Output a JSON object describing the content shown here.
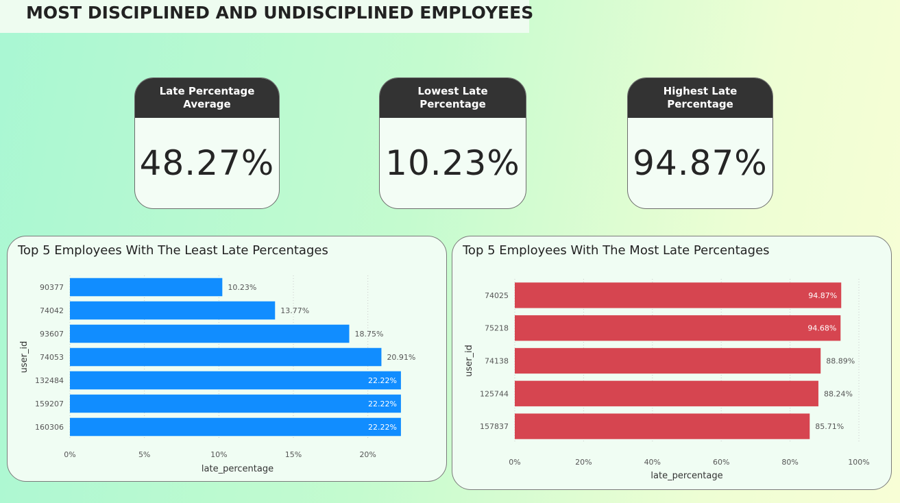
{
  "header": {
    "title": "MOST DISCIPLINED AND UNDISCIPLINED EMPLOYEES"
  },
  "kpis": [
    {
      "label": "Late Percentage Average",
      "value": "48.27%"
    },
    {
      "label": "Lowest Late Percentage",
      "value": "10.23%"
    },
    {
      "label": "Highest Late Percentage",
      "value": "94.87%"
    }
  ],
  "chart_data": [
    {
      "type": "bar",
      "orientation": "horizontal",
      "title": "Top 5 Employees With The Least Late Percentages",
      "xlabel": "late_percentage",
      "ylabel": "user_id",
      "categories": [
        "90377",
        "74042",
        "93607",
        "74053",
        "132484",
        "159207",
        "160306"
      ],
      "values": [
        10.23,
        13.77,
        18.75,
        20.91,
        22.22,
        22.22,
        22.22
      ],
      "data_labels": [
        "10.23%",
        "13.77%",
        "18.75%",
        "20.91%",
        "22.22%",
        "22.22%",
        "22.22%"
      ],
      "xlim": [
        0,
        22.5
      ],
      "xticks": [
        0,
        5,
        10,
        15,
        20
      ],
      "xtick_labels": [
        "0%",
        "5%",
        "10%",
        "15%",
        "20%"
      ],
      "grid": true,
      "bar_color": "#118dff"
    },
    {
      "type": "bar",
      "orientation": "horizontal",
      "title": "Top 5 Employees With The Most Late Percentages",
      "xlabel": "late_percentage",
      "ylabel": "user_id",
      "categories": [
        "74025",
        "75218",
        "74138",
        "125744",
        "157837"
      ],
      "values": [
        94.87,
        94.68,
        88.89,
        88.24,
        85.71
      ],
      "data_labels": [
        "94.87%",
        "94.68%",
        "88.89%",
        "88.24%",
        "85.71%"
      ],
      "xlim": [
        0,
        100
      ],
      "xticks": [
        0,
        20,
        40,
        60,
        80,
        100
      ],
      "xtick_labels": [
        "0%",
        "20%",
        "40%",
        "60%",
        "80%",
        "100%"
      ],
      "grid": true,
      "bar_color": "#d64550"
    }
  ]
}
